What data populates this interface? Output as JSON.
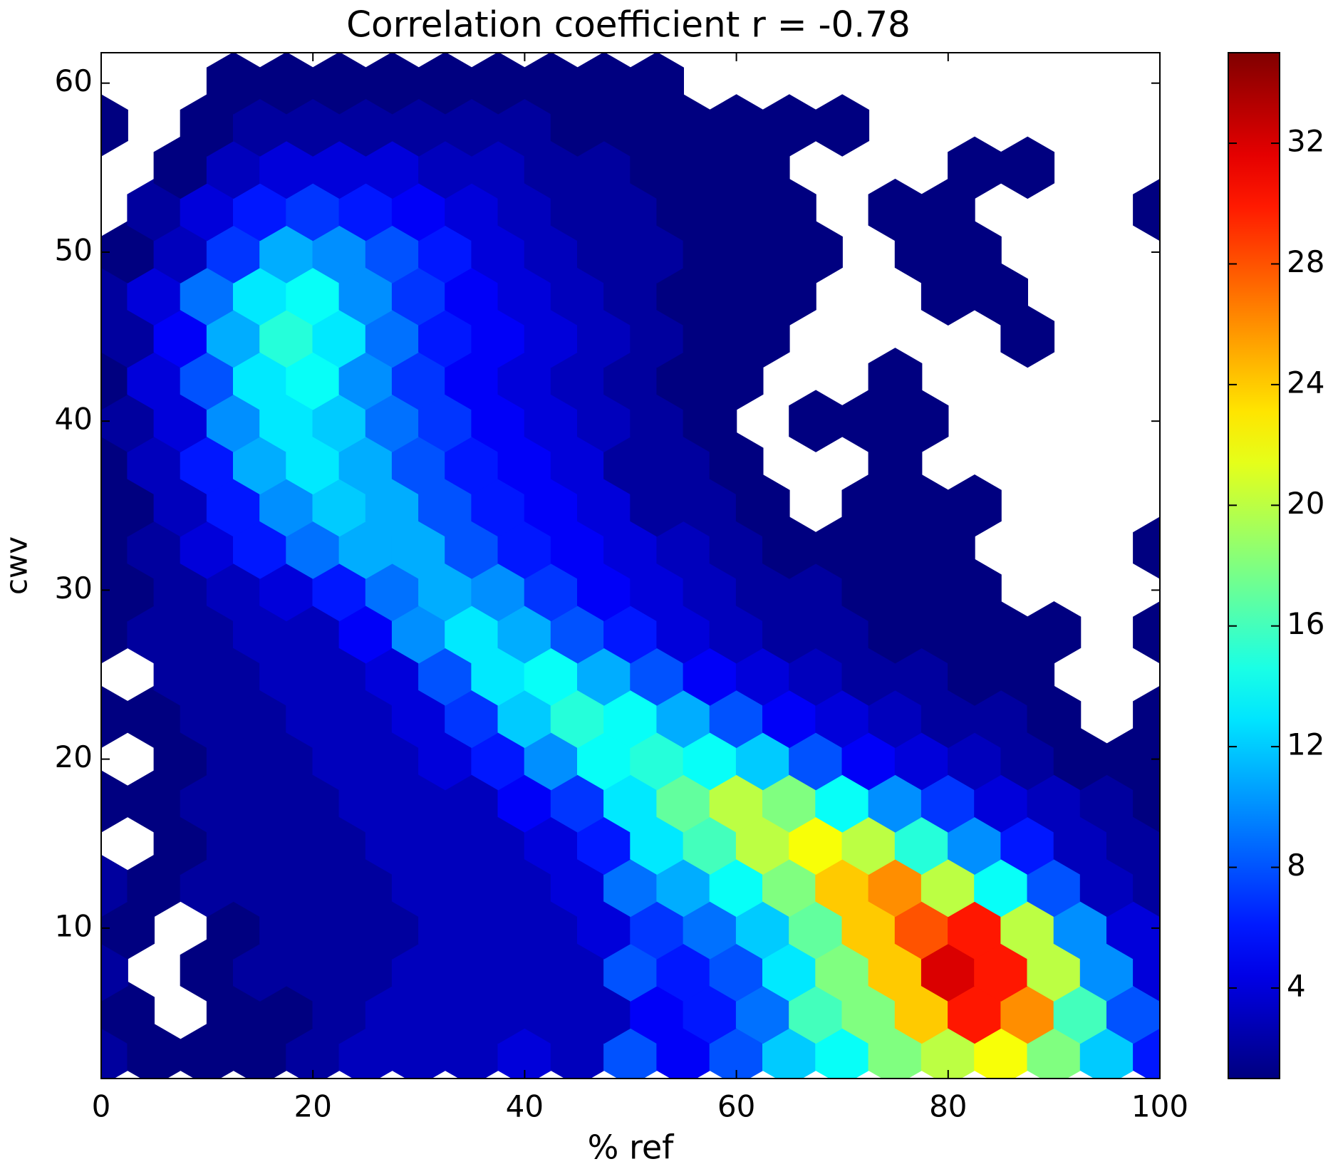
{
  "chart_data": {
    "type": "hexbin",
    "title": "Correlation coefficient r = -0.78",
    "xlabel": "% ref",
    "ylabel": "cwv",
    "xlim": [
      0,
      100
    ],
    "ylim": [
      1.1,
      61.8
    ],
    "xticks": [
      0,
      20,
      40,
      60,
      80,
      100
    ],
    "yticks": [
      10,
      20,
      30,
      40,
      50,
      60
    ],
    "colormap": "jet",
    "clim": [
      1,
      35
    ],
    "cticks": [
      4,
      8,
      12,
      16,
      20,
      24,
      28,
      32
    ],
    "x_even": [
      0,
      5,
      10,
      15,
      20,
      25,
      30,
      35,
      40,
      45,
      50,
      55,
      60,
      65,
      70,
      75,
      80,
      85,
      90,
      95,
      100
    ],
    "x_odd": [
      2.5,
      7.5,
      12.5,
      17.5,
      22.5,
      27.5,
      32.5,
      37.5,
      42.5,
      47.5,
      52.5,
      57.5,
      62.5,
      67.5,
      72.5,
      77.5,
      82.5,
      87.5,
      92.5,
      97.5
    ],
    "rows": [
      {
        "y": 2.5,
        "counts": [
          2,
          1,
          1,
          1,
          2,
          3,
          3,
          3,
          4,
          3,
          8,
          5,
          8,
          12,
          14,
          18,
          20,
          22,
          18,
          12,
          6
        ]
      },
      {
        "y": 5,
        "counts": [
          1,
          null,
          1,
          1,
          2,
          3,
          3,
          3,
          3,
          3,
          5,
          6,
          9,
          16,
          18,
          24,
          30,
          26,
          16,
          8
        ]
      },
      {
        "y": 7.5,
        "counts": [
          2,
          null,
          1,
          2,
          2,
          2,
          3,
          3,
          3,
          3,
          8,
          6,
          8,
          13,
          18,
          24,
          32,
          30,
          20,
          10,
          4
        ]
      },
      {
        "y": 10,
        "counts": [
          1,
          null,
          1,
          2,
          2,
          2,
          3,
          3,
          3,
          4,
          7,
          9,
          12,
          17,
          24,
          28,
          30,
          20,
          10,
          4
        ]
      },
      {
        "y": 12.5,
        "counts": [
          2,
          1,
          2,
          2,
          2,
          2,
          3,
          3,
          3,
          4,
          9,
          11,
          14,
          18,
          24,
          26,
          20,
          14,
          8,
          3,
          2
        ]
      },
      {
        "y": 15,
        "counts": [
          null,
          1,
          2,
          2,
          2,
          3,
          3,
          3,
          4,
          6,
          13,
          16,
          20,
          22,
          20,
          15,
          10,
          6,
          3,
          2
        ]
      },
      {
        "y": 17.5,
        "counts": [
          1,
          1,
          2,
          2,
          2,
          3,
          3,
          3,
          5,
          7,
          13,
          17,
          20,
          18,
          14,
          10,
          7,
          4,
          3,
          2,
          1
        ]
      },
      {
        "y": 20,
        "counts": [
          null,
          1,
          2,
          2,
          3,
          3,
          4,
          6,
          10,
          14,
          15,
          14,
          12,
          8,
          5,
          4,
          3,
          2,
          1,
          1
        ]
      },
      {
        "y": 22.5,
        "counts": [
          1,
          1,
          2,
          2,
          3,
          3,
          4,
          7,
          12,
          15,
          14,
          11,
          8,
          5,
          4,
          3,
          2,
          2,
          1,
          null,
          1
        ]
      },
      {
        "y": 25,
        "counts": [
          null,
          2,
          2,
          3,
          3,
          4,
          8,
          13,
          14,
          11,
          8,
          5,
          4,
          3,
          2,
          2,
          1,
          1,
          null,
          null
        ]
      },
      {
        "y": 27.5,
        "counts": [
          1,
          2,
          2,
          3,
          3,
          5,
          10,
          13,
          11,
          8,
          6,
          4,
          3,
          2,
          2,
          1,
          1,
          1,
          1,
          null,
          1
        ]
      },
      {
        "y": 30,
        "counts": [
          1,
          2,
          3,
          4,
          6,
          9,
          11,
          10,
          7,
          5,
          4,
          3,
          2,
          2,
          1,
          1,
          1,
          null,
          null,
          null
        ]
      },
      {
        "y": 32.5,
        "counts": [
          1,
          2,
          4,
          6,
          9,
          11,
          11,
          8,
          6,
          5,
          4,
          3,
          2,
          1,
          1,
          1,
          1,
          null,
          null,
          null,
          1
        ]
      },
      {
        "y": 35,
        "counts": [
          1,
          3,
          6,
          10,
          12,
          11,
          8,
          6,
          5,
          4,
          2,
          2,
          1,
          null,
          1,
          1,
          1,
          null,
          null,
          null
        ]
      },
      {
        "y": 37.5,
        "counts": [
          1,
          3,
          6,
          11,
          13,
          11,
          8,
          6,
          5,
          4,
          2,
          2,
          1,
          null,
          null,
          1,
          null,
          null,
          null,
          null,
          null
        ]
      },
      {
        "y": 40,
        "counts": [
          2,
          4,
          10,
          13,
          12,
          9,
          7,
          5,
          4,
          3,
          2,
          1,
          null,
          1,
          1,
          1,
          null,
          null,
          null,
          null
        ]
      },
      {
        "y": 42.5,
        "counts": [
          1,
          4,
          8,
          13,
          14,
          10,
          7,
          5,
          4,
          3,
          2,
          1,
          1,
          null,
          null,
          1,
          null,
          null,
          null,
          null,
          null
        ]
      },
      {
        "y": 45,
        "counts": [
          2,
          5,
          11,
          15,
          13,
          9,
          6,
          5,
          4,
          3,
          2,
          1,
          1,
          null,
          null,
          null,
          null,
          1,
          null,
          null
        ]
      },
      {
        "y": 47.5,
        "counts": [
          2,
          4,
          9,
          13,
          14,
          10,
          7,
          5,
          4,
          3,
          2,
          1,
          1,
          1,
          null,
          null,
          1,
          1,
          null,
          null,
          null
        ]
      },
      {
        "y": 50,
        "counts": [
          1,
          3,
          7,
          11,
          10,
          8,
          6,
          4,
          3,
          2,
          2,
          1,
          1,
          1,
          null,
          1,
          1,
          null,
          null,
          null
        ]
      },
      {
        "y": 52.5,
        "counts": [
          null,
          2,
          4,
          6,
          7,
          6,
          5,
          4,
          3,
          2,
          2,
          1,
          1,
          1,
          null,
          1,
          1,
          null,
          null,
          null,
          1
        ]
      },
      {
        "y": 55,
        "counts": [
          null,
          1,
          3,
          4,
          4,
          4,
          3,
          3,
          2,
          2,
          1,
          1,
          1,
          null,
          null,
          null,
          1,
          1,
          null,
          null
        ]
      },
      {
        "y": 57.5,
        "counts": [
          1,
          null,
          1,
          2,
          2,
          2,
          2,
          2,
          2,
          1,
          1,
          1,
          1,
          1,
          1,
          null,
          null,
          null,
          null,
          null,
          null
        ]
      },
      {
        "y": 60,
        "counts": [
          null,
          null,
          1,
          1,
          1,
          1,
          1,
          1,
          1,
          1,
          1,
          null,
          null,
          null,
          null,
          null,
          null,
          null,
          null,
          null
        ]
      }
    ]
  }
}
